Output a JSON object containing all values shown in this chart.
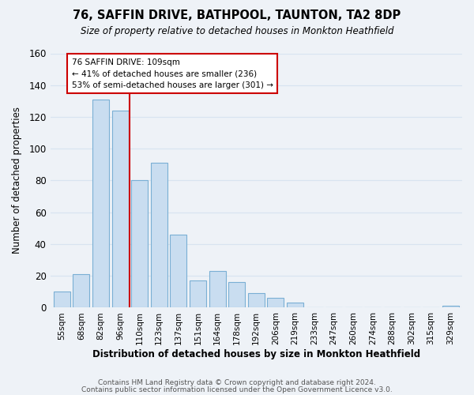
{
  "title": "76, SAFFIN DRIVE, BATHPOOL, TAUNTON, TA2 8DP",
  "subtitle": "Size of property relative to detached houses in Monkton Heathfield",
  "xlabel": "Distribution of detached houses by size in Monkton Heathfield",
  "ylabel": "Number of detached properties",
  "bar_labels": [
    "55sqm",
    "68sqm",
    "82sqm",
    "96sqm",
    "110sqm",
    "123sqm",
    "137sqm",
    "151sqm",
    "164sqm",
    "178sqm",
    "192sqm",
    "206sqm",
    "219sqm",
    "233sqm",
    "247sqm",
    "260sqm",
    "274sqm",
    "288sqm",
    "302sqm",
    "315sqm",
    "329sqm"
  ],
  "bar_values": [
    10,
    21,
    131,
    124,
    80,
    91,
    46,
    17,
    23,
    16,
    9,
    6,
    3,
    0,
    0,
    0,
    0,
    0,
    0,
    0,
    1
  ],
  "bar_color": "#c9ddf0",
  "bar_edge_color": "#7aafd4",
  "vline_x": 3.5,
  "vline_color": "#cc0000",
  "annotation_line1": "76 SAFFIN DRIVE: 109sqm",
  "annotation_line2": "← 41% of detached houses are smaller (236)",
  "annotation_line3": "53% of semi-detached houses are larger (301) →",
  "annotation_box_color": "white",
  "annotation_box_edge": "#cc0000",
  "ylim": [
    0,
    160
  ],
  "yticks": [
    0,
    20,
    40,
    60,
    80,
    100,
    120,
    140,
    160
  ],
  "footer1": "Contains HM Land Registry data © Crown copyright and database right 2024.",
  "footer2": "Contains public sector information licensed under the Open Government Licence v3.0.",
  "background_color": "#eef2f7",
  "grid_color": "#d8e4f0"
}
